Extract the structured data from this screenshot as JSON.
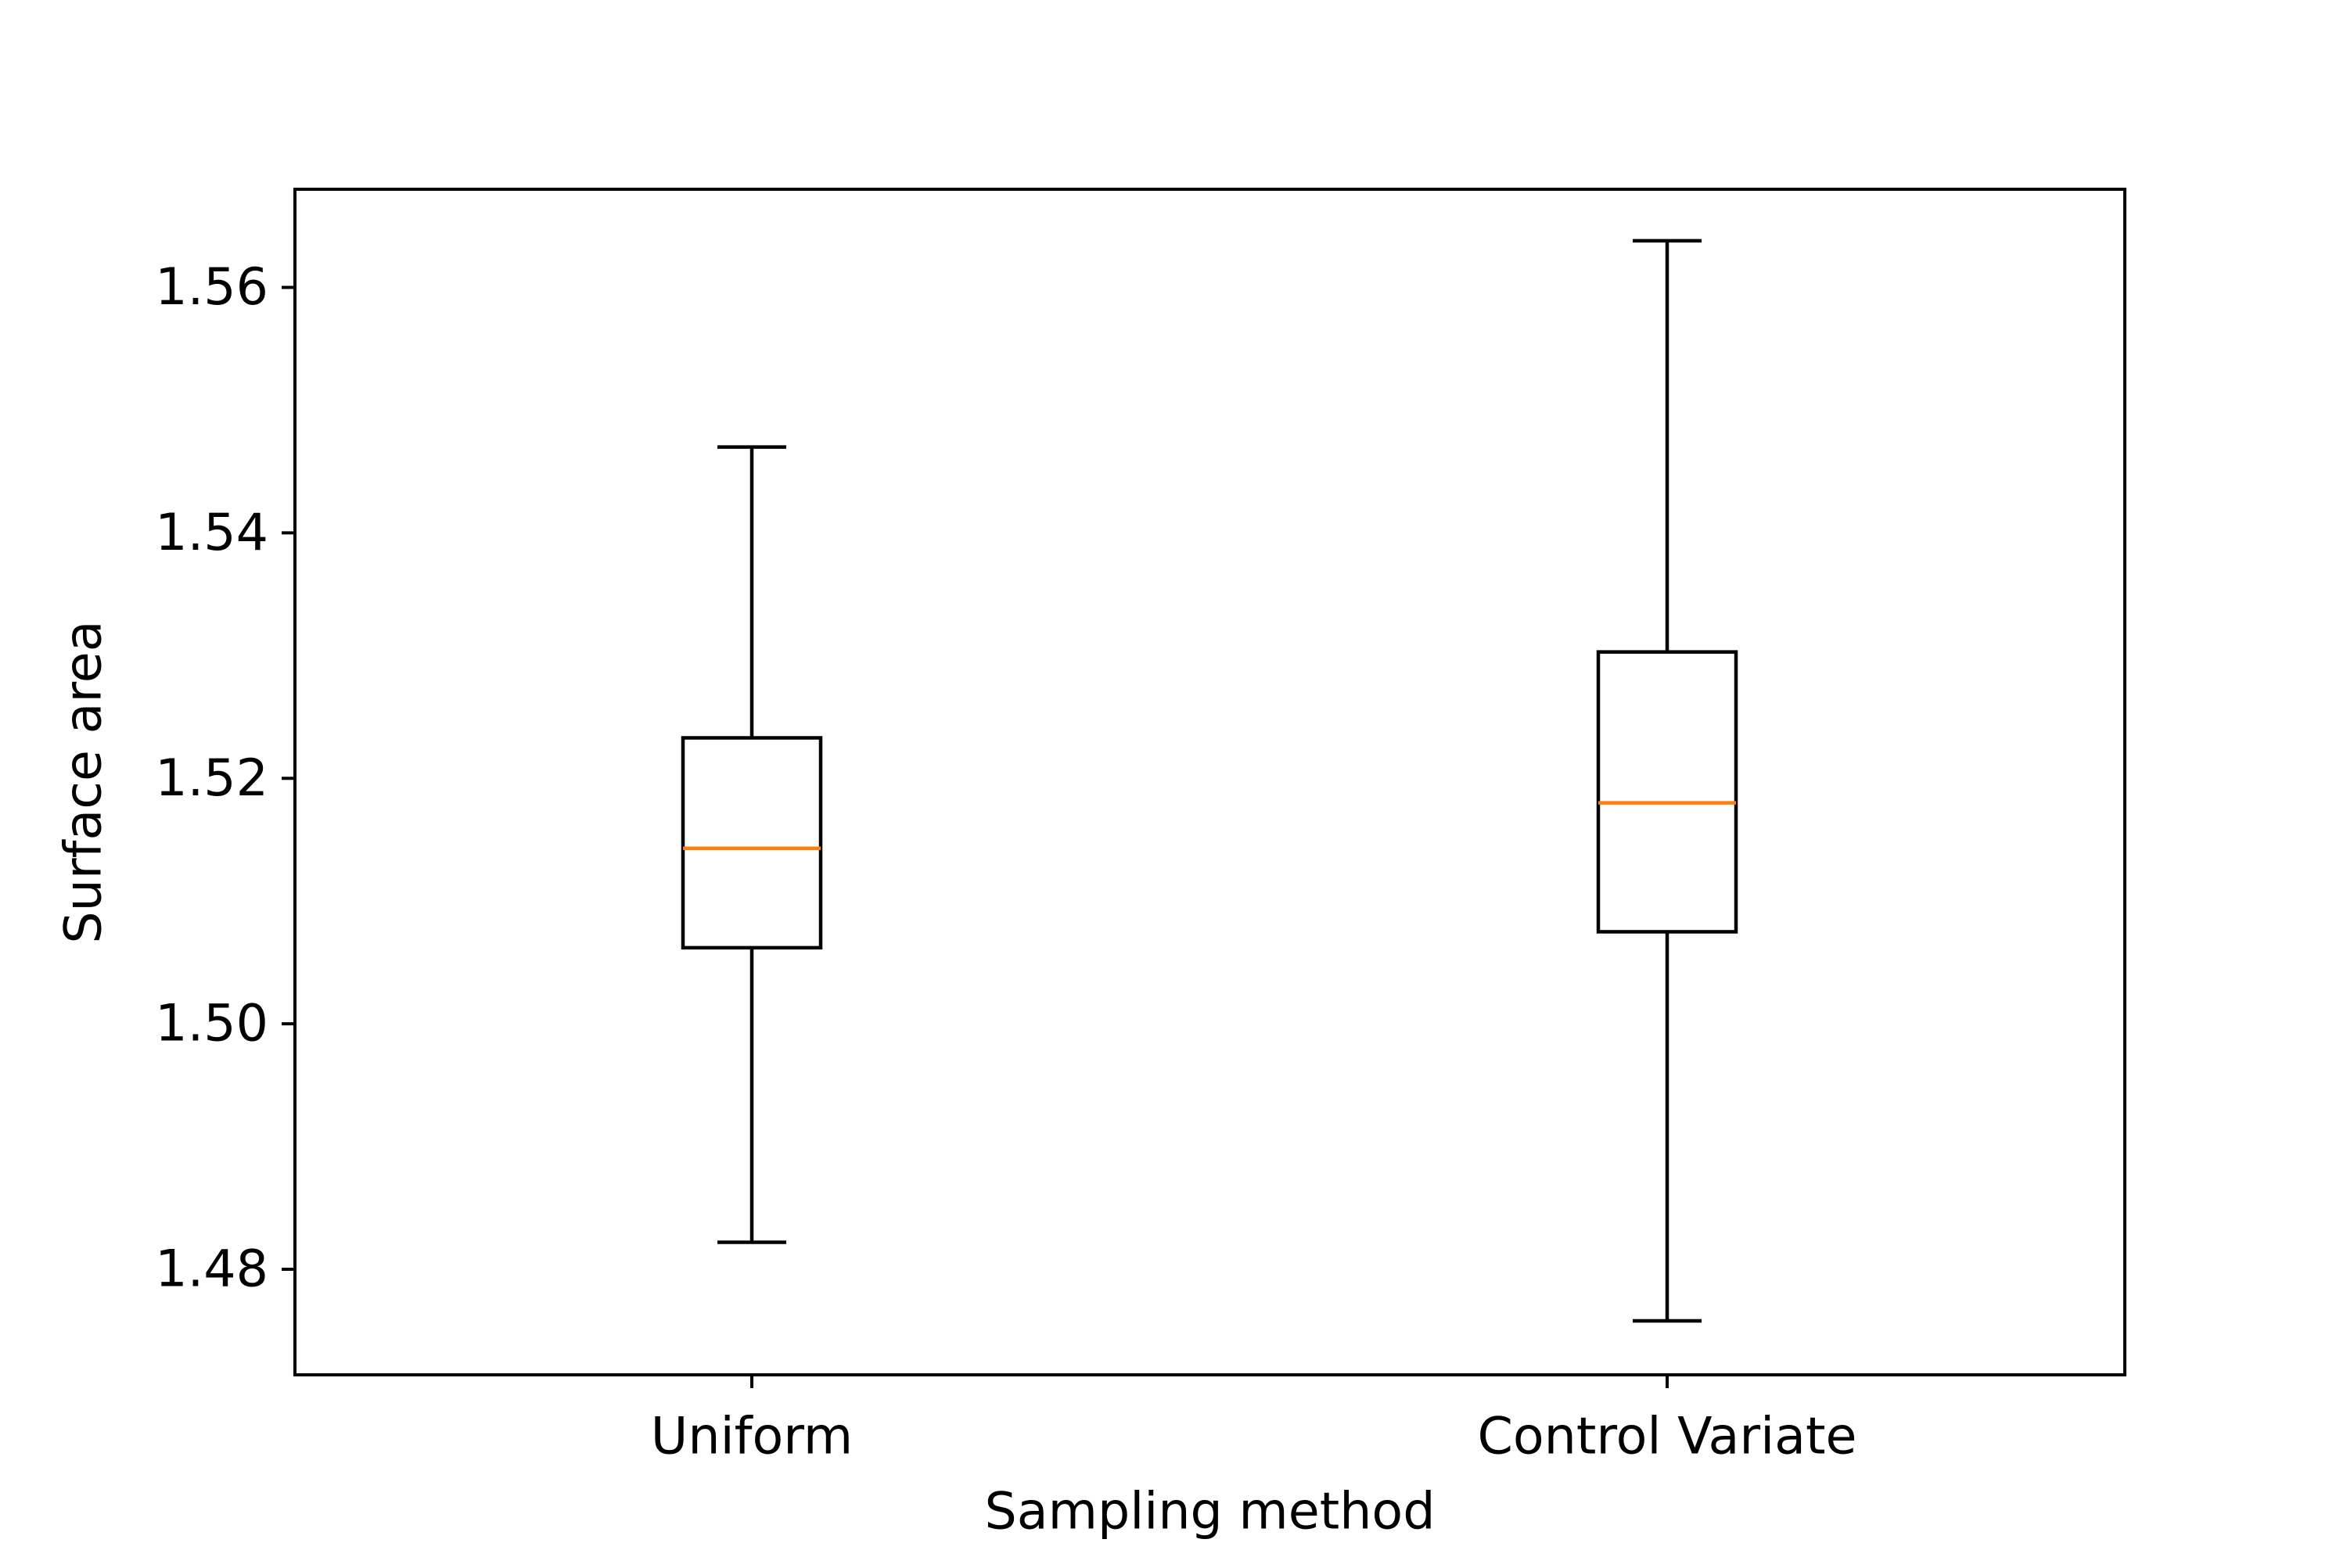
{
  "chart_data": {
    "type": "box",
    "title": "",
    "xlabel": "Sampling method",
    "ylabel": "Surface area",
    "categories": [
      "Uniform",
      "Control Variate"
    ],
    "boxes": [
      {
        "name": "Uniform",
        "whisker_low": 1.4822,
        "q1": 1.5062,
        "median": 1.5143,
        "q3": 1.5233,
        "whisker_high": 1.547
      },
      {
        "name": "Control Variate",
        "whisker_low": 1.4758,
        "q1": 1.5075,
        "median": 1.518,
        "q3": 1.5303,
        "whisker_high": 1.5638
      }
    ],
    "ylim": [
      1.4714,
      1.568
    ],
    "yticks": [
      1.48,
      1.5,
      1.52,
      1.54,
      1.56
    ],
    "ytick_labels": [
      "1.48",
      "1.50",
      "1.52",
      "1.54",
      "1.56"
    ],
    "grid": false,
    "legend": "none",
    "colors": {
      "box": "#000000",
      "median": "#ff7f0e",
      "axes": "#000000",
      "background": "#ffffff"
    }
  }
}
